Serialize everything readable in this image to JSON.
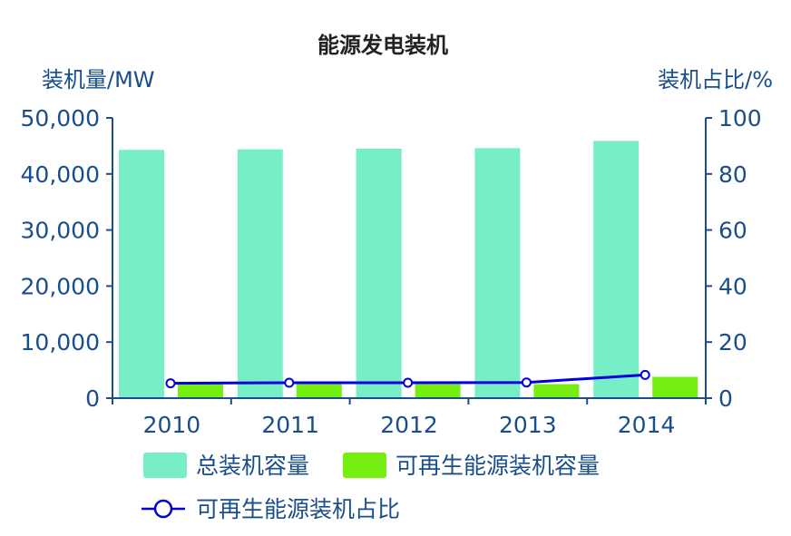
{
  "chart_data": {
    "type": "bar",
    "title": "能源发电装机",
    "ylabel": "装机量/MW",
    "y2label": "装机占比/%",
    "categories": [
      "2010",
      "2011",
      "2012",
      "2013",
      "2014"
    ],
    "ylim": [
      0,
      50000
    ],
    "y2lim": [
      0,
      100
    ],
    "yticks": [
      "0",
      "10,000",
      "20,000",
      "30,000",
      "40,000",
      "50,000"
    ],
    "y2ticks": [
      "0",
      "20",
      "40",
      "60",
      "80",
      "100"
    ],
    "series": [
      {
        "name": "总装机容量",
        "type": "bar",
        "axis": "left",
        "color": "#77eec6",
        "values": [
          44300,
          44400,
          44500,
          44600,
          45900
        ]
      },
      {
        "name": "可再生能源装机容量",
        "type": "bar",
        "axis": "left",
        "color": "#77ee11",
        "values": [
          2500,
          2500,
          2500,
          2500,
          3800
        ]
      },
      {
        "name": "可再生能源装机占比",
        "type": "line",
        "axis": "right",
        "color": "#0000dd",
        "values": [
          5.3,
          5.5,
          5.5,
          5.6,
          8.3
        ]
      }
    ],
    "axis_color": "#1a4e8a",
    "legend_position": "bottom",
    "grid": false
  }
}
